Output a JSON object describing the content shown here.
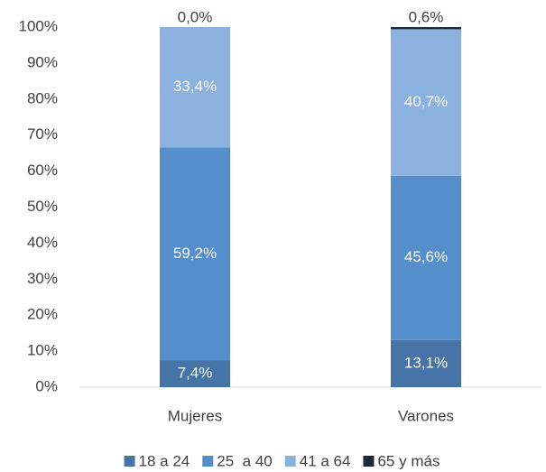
{
  "chart_data": {
    "type": "stacked_bar",
    "categories": [
      "Mujeres",
      "Varones"
    ],
    "series": [
      {
        "name": "18 a 24",
        "color": "#4674a6",
        "values": [
          7.4,
          13.1
        ],
        "value_labels": [
          "7,4%",
          "13,1%"
        ]
      },
      {
        "name": "25  a 40",
        "color": "#558ecb",
        "values": [
          59.2,
          45.6
        ],
        "value_labels": [
          "59,2%",
          "45,6%"
        ]
      },
      {
        "name": "41 a 64",
        "color": "#8bb1df",
        "values": [
          33.4,
          40.7
        ],
        "value_labels": [
          "33,4%",
          "40,7%"
        ]
      },
      {
        "name": "65 y más",
        "color": "#1e2838",
        "values": [
          0.0,
          0.6
        ],
        "value_labels": [
          "0,0%",
          "0,6%"
        ]
      }
    ],
    "ylim": [
      0,
      100
    ],
    "yticks": [
      {
        "value": 0,
        "label": "0%"
      },
      {
        "value": 10,
        "label": "10%"
      },
      {
        "value": 20,
        "label": "20%"
      },
      {
        "value": 30,
        "label": "30%"
      },
      {
        "value": 40,
        "label": "40%"
      },
      {
        "value": 50,
        "label": "50%"
      },
      {
        "value": 60,
        "label": "60%"
      },
      {
        "value": 70,
        "label": "70%"
      },
      {
        "value": 80,
        "label": "80%"
      },
      {
        "value": 90,
        "label": "90%"
      },
      {
        "value": 100,
        "label": "100%"
      }
    ],
    "grid": false,
    "legend": "bottom"
  }
}
